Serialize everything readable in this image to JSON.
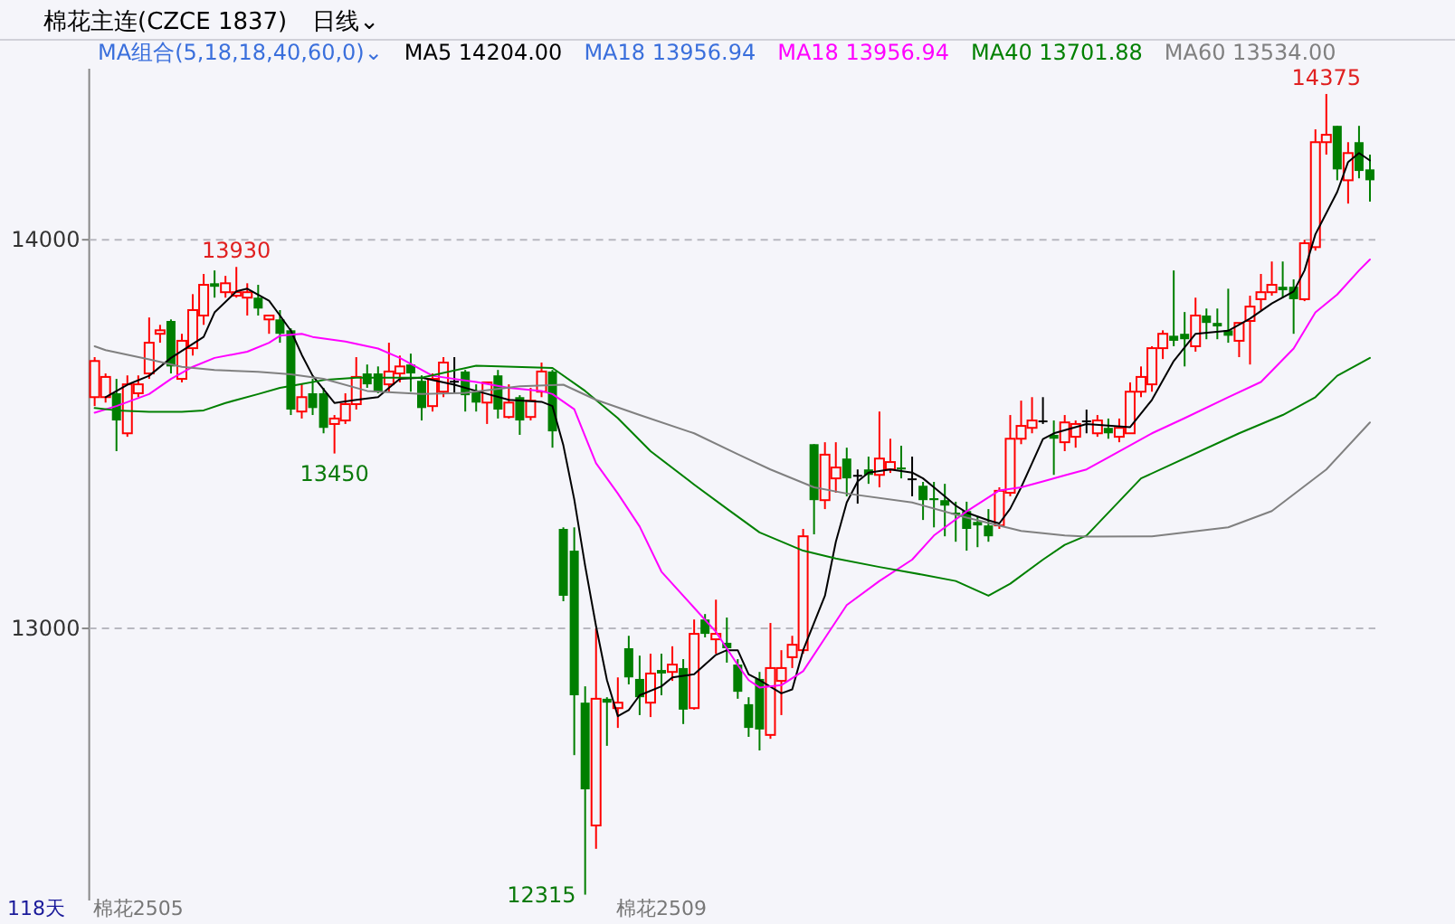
{
  "chart_data": {
    "type": "candlestick",
    "title": "棉花主连(CZCE 1837)",
    "subtitle": "日线⌄",
    "categories": [
      null,
      null,
      null,
      null,
      "棉花2505",
      null,
      null,
      null,
      null,
      null,
      null,
      null,
      null,
      null,
      null,
      null,
      null,
      null,
      null,
      null,
      null,
      null,
      null,
      null,
      null,
      null,
      null,
      null,
      null,
      null,
      null,
      null,
      null,
      null,
      null,
      null,
      null,
      null,
      null,
      null,
      null,
      null,
      null,
      null,
      null,
      null,
      null,
      null,
      null,
      null,
      null,
      null,
      "棉花2509",
      null,
      null,
      null,
      null,
      null,
      null,
      null,
      null,
      null,
      null,
      null,
      null,
      null,
      null,
      null,
      null,
      null,
      null,
      null,
      null,
      null,
      null,
      null,
      null,
      null,
      null,
      null,
      null,
      null,
      null,
      null,
      null,
      null,
      null,
      null,
      null,
      null,
      null,
      null,
      null,
      null,
      null,
      null,
      null,
      null,
      null,
      null,
      null,
      null,
      null,
      null,
      null,
      null,
      null,
      null,
      null,
      null,
      null,
      null,
      null,
      null,
      null,
      null,
      null,
      null
    ],
    "ohlc": [
      [
        13595,
        13698,
        13572,
        13688
      ],
      [
        13595,
        13656,
        13581,
        13647
      ],
      [
        13605,
        13642,
        13456,
        13535
      ],
      [
        13502,
        13651,
        13493,
        13628
      ],
      [
        13605,
        13651,
        13595,
        13628
      ],
      [
        13656,
        13800,
        13642,
        13735
      ],
      [
        13758,
        13781,
        13735,
        13767
      ],
      [
        13791,
        13795,
        13656,
        13674
      ],
      [
        13642,
        13758,
        13633,
        13740
      ],
      [
        13721,
        13860,
        13702,
        13819
      ],
      [
        13805,
        13912,
        13781,
        13884
      ],
      [
        13888,
        13921,
        13851,
        13879
      ],
      [
        13865,
        13907,
        13851,
        13888
      ],
      [
        13856,
        13930,
        13851,
        13865
      ],
      [
        13851,
        13888,
        13805,
        13865
      ],
      [
        13851,
        13884,
        13805,
        13823
      ],
      [
        13795,
        13805,
        13758,
        13805
      ],
      [
        13795,
        13819,
        13735,
        13758
      ],
      [
        13767,
        13772,
        13549,
        13563
      ],
      [
        13558,
        13628,
        13540,
        13595
      ],
      [
        13605,
        13642,
        13549,
        13567
      ],
      [
        13605,
        13619,
        13502,
        13516
      ],
      [
        13526,
        13549,
        13450,
        13540
      ],
      [
        13535,
        13605,
        13526,
        13577
      ],
      [
        13577,
        13698,
        13563,
        13647
      ],
      [
        13656,
        13679,
        13619,
        13628
      ],
      [
        13656,
        13674,
        13605,
        13609
      ],
      [
        13628,
        13735,
        13609,
        13661
      ],
      [
        13656,
        13702,
        13633,
        13674
      ],
      [
        13679,
        13707,
        13609,
        13656
      ],
      [
        13637,
        13651,
        13535,
        13567
      ],
      [
        13572,
        13656,
        13558,
        13642
      ],
      [
        13609,
        13698,
        13595,
        13684
      ],
      [
        13637,
        13698,
        13605,
        13637
      ],
      [
        13661,
        13665,
        13558,
        13600
      ],
      [
        13609,
        13628,
        13558,
        13581
      ],
      [
        13581,
        13633,
        13526,
        13633
      ],
      [
        13651,
        13665,
        13540,
        13563
      ],
      [
        13544,
        13628,
        13540,
        13581
      ],
      [
        13595,
        13600,
        13498,
        13535
      ],
      [
        13544,
        13619,
        13535,
        13586
      ],
      [
        13609,
        13684,
        13595,
        13661
      ],
      [
        13661,
        13665,
        13465,
        13507
      ],
      [
        13256,
        13260,
        13070,
        13084
      ],
      [
        13200,
        13260,
        12674,
        12828
      ],
      [
        12809,
        12851,
        12315,
        12586
      ],
      [
        12493,
        13000,
        12433,
        12819
      ],
      [
        12819,
        12823,
        12698,
        12809
      ],
      [
        12795,
        12874,
        12744,
        12809
      ],
      [
        12949,
        12981,
        12856,
        12874
      ],
      [
        12870,
        12930,
        12777,
        12823
      ],
      [
        12809,
        12935,
        12772,
        12884
      ],
      [
        12893,
        12935,
        12828,
        12884
      ],
      [
        12888,
        12954,
        12865,
        12907
      ],
      [
        12898,
        12921,
        12754,
        12791
      ],
      [
        12795,
        13023,
        12791,
        12986
      ],
      [
        13023,
        13037,
        12977,
        12986
      ],
      [
        12972,
        13074,
        12935,
        12986
      ],
      [
        12963,
        13028,
        12912,
        12949
      ],
      [
        12907,
        12921,
        12819,
        12837
      ],
      [
        12805,
        12823,
        12721,
        12744
      ],
      [
        12870,
        12888,
        12686,
        12740
      ],
      [
        12726,
        13014,
        12716,
        12898
      ],
      [
        12865,
        12944,
        12777,
        12898
      ],
      [
        12926,
        12981,
        12898,
        12958
      ],
      [
        12944,
        13256,
        12935,
        13237
      ],
      [
        13474,
        13474,
        13242,
        13330
      ],
      [
        13330,
        13479,
        13307,
        13447
      ],
      [
        13386,
        13479,
        13349,
        13414
      ],
      [
        13437,
        13465,
        13340,
        13386
      ],
      [
        13395,
        13409,
        13321,
        13395
      ],
      [
        13409,
        13442,
        13372,
        13395
      ],
      [
        13395,
        13558,
        13363,
        13437
      ],
      [
        13409,
        13488,
        13400,
        13428
      ],
      [
        13414,
        13470,
        13386,
        13409
      ],
      [
        13386,
        13442,
        13340,
        13386
      ],
      [
        13367,
        13377,
        13279,
        13330
      ],
      [
        13335,
        13377,
        13260,
        13330
      ],
      [
        13330,
        13372,
        13237,
        13316
      ],
      [
        13298,
        13326,
        13223,
        13293
      ],
      [
        13302,
        13326,
        13200,
        13256
      ],
      [
        13274,
        13288,
        13209,
        13265
      ],
      [
        13265,
        13307,
        13223,
        13237
      ],
      [
        13265,
        13363,
        13256,
        13354
      ],
      [
        13349,
        13549,
        13340,
        13488
      ],
      [
        13488,
        13586,
        13474,
        13521
      ],
      [
        13516,
        13595,
        13502,
        13535
      ],
      [
        13535,
        13595,
        13526,
        13535
      ],
      [
        13498,
        13535,
        13395,
        13488
      ],
      [
        13479,
        13549,
        13456,
        13530
      ],
      [
        13493,
        13535,
        13465,
        13526
      ],
      [
        13535,
        13563,
        13502,
        13535
      ],
      [
        13502,
        13549,
        13493,
        13535
      ],
      [
        13516,
        13540,
        13488,
        13502
      ],
      [
        13493,
        13540,
        13479,
        13516
      ],
      [
        13502,
        13633,
        13502,
        13609
      ],
      [
        13609,
        13674,
        13595,
        13647
      ],
      [
        13628,
        13726,
        13609,
        13721
      ],
      [
        13721,
        13767,
        13693,
        13758
      ],
      [
        13753,
        13921,
        13726,
        13740
      ],
      [
        13758,
        13814,
        13674,
        13744
      ],
      [
        13726,
        13851,
        13712,
        13805
      ],
      [
        13805,
        13823,
        13744,
        13786
      ],
      [
        13786,
        13823,
        13744,
        13777
      ],
      [
        13767,
        13874,
        13735,
        13753
      ],
      [
        13740,
        13786,
        13698,
        13786
      ],
      [
        13791,
        13856,
        13679,
        13828
      ],
      [
        13847,
        13912,
        13819,
        13865
      ],
      [
        13865,
        13944,
        13856,
        13884
      ],
      [
        13879,
        13944,
        13851,
        13870
      ],
      [
        13879,
        13898,
        13758,
        13847
      ],
      [
        13847,
        14000,
        13842,
        13991
      ],
      [
        13981,
        14284,
        13972,
        14251
      ],
      [
        14251,
        14375,
        14219,
        14270
      ],
      [
        14293,
        14293,
        14153,
        14181
      ],
      [
        14153,
        14251,
        14093,
        14223
      ],
      [
        14251,
        14293,
        14158,
        14177
      ],
      [
        14181,
        14219,
        14098,
        14153
      ]
    ],
    "series": [
      {
        "name": "MA5 14204.00",
        "type": "line",
        "color": "#000000",
        "values": [
          null,
          13595,
          null,
          13627,
          null,
          13650,
          null,
          13696,
          null,
          null,
          13750,
          13813,
          null,
          13867,
          13874,
          null,
          13843,
          13805,
          13766,
          13704,
          13650,
          null,
          13580,
          null,
          13588,
          null,
          13595,
          13619,
          13642,
          null,
          13645,
          null,
          null,
          13627,
          null,
          13611,
          null,
          null,
          13588,
          null,
          null,
          13583,
          13572,
          13471,
          13332,
          13161,
          13006,
          12867,
          12774,
          12790,
          12828,
          null,
          12851,
          12874,
          null,
          12882,
          null,
          12932,
          12944,
          12944,
          12882,
          12867,
          null,
          12833,
          12843,
          12944,
          null,
          13084,
          13223,
          13324,
          13378,
          13401,
          null,
          13409,
          null,
          13401,
          13386,
          13363,
          13340,
          13316,
          13298,
          null,
          13278,
          13270,
          13308,
          13363,
          13425,
          13487,
          13502,
          null,
          null,
          13526,
          null,
          null,
          null,
          13518,
          null,
          13588,
          null,
          13688,
          null,
          13758,
          null,
          null,
          13766,
          null,
          13797,
          null,
          13836,
          null,
          13867,
          13921,
          14014,
          null,
          14123,
          14200,
          14223,
          14204
        ]
      },
      {
        "name": "MA18 13956.94",
        "type": "line",
        "color": "#ff00ff",
        "values": [
          13555,
          null,
          13572,
          null,
          null,
          13603,
          null,
          13642,
          null,
          13673,
          null,
          13696,
          null,
          null,
          13712,
          null,
          13735,
          13753,
          null,
          13758,
          13750,
          null,
          null,
          13738,
          null,
          null,
          13720,
          null,
          13696,
          null,
          null,
          13650,
          null,
          null,
          null,
          13634,
          null,
          null,
          13619,
          null,
          null,
          13611,
          13603,
          null,
          13564,
          13494,
          13425,
          null,
          13347,
          null,
          13262,
          null,
          13146,
          null,
          null,
          13053,
          null,
          12991,
          null,
          12906,
          12867,
          12848,
          null,
          12854,
          null,
          12890,
          null,
          12975,
          null,
          13060,
          null,
          null,
          13122,
          null,
          null,
          13177,
          null,
          13239,
          null,
          null,
          13301,
          null,
          null,
          13355,
          null,
          13363,
          null,
          13378,
          null,
          13394,
          null,
          13409,
          null,
          null,
          null,
          null,
          null,
          13502,
          null,
          null,
          13541,
          null,
          null,
          null,
          13595,
          null,
          null,
          13634,
          null,
          null,
          13720,
          null,
          13813,
          null,
          13859,
          null,
          13921,
          13949
        ]
      },
      {
        "name": "MA40 13701.88",
        "type": "line",
        "color": "#008000",
        "values": [
          13567,
          null,
          13561,
          null,
          null,
          13557,
          null,
          null,
          13557,
          null,
          13561,
          null,
          13580,
          null,
          null,
          13603,
          null,
          13619,
          null,
          13629,
          null,
          13639,
          null,
          null,
          13645,
          null,
          null,
          null,
          null,
          null,
          13645,
          null,
          null,
          null,
          null,
          13676,
          null,
          null,
          null,
          null,
          null,
          null,
          13670,
          null,
          null,
          13611,
          null,
          null,
          13541,
          null,
          null,
          13456,
          null,
          null,
          null,
          13370,
          null,
          null,
          13308,
          null,
          null,
          13247,
          null,
          null,
          null,
          13200,
          null,
          null,
          13180,
          null,
          null,
          null,
          13158,
          null,
          null,
          null,
          13138,
          null,
          null,
          13122,
          null,
          null,
          13084,
          null,
          13115,
          null,
          null,
          13177,
          null,
          13215,
          null,
          13239,
          null,
          null,
          null,
          null,
          13386,
          null,
          null,
          null,
          null,
          null,
          null,
          null,
          null,
          13502,
          null,
          null,
          null,
          13549,
          null,
          null,
          13595,
          null,
          13650,
          null,
          null,
          13696
        ]
      },
      {
        "name": "MA60 13534.00",
        "type": "line",
        "color": "#808080",
        "values": [
          13726,
          13716,
          null,
          null,
          null,
          13692,
          null,
          null,
          13673,
          null,
          null,
          13665,
          null,
          null,
          null,
          13660,
          null,
          null,
          13654,
          null,
          null,
          13642,
          null,
          null,
          null,
          13611,
          null,
          null,
          null,
          null,
          13603,
          null,
          null,
          null,
          13606,
          null,
          null,
          null,
          null,
          13623,
          null,
          null,
          null,
          13627,
          null,
          null,
          13588,
          null,
          null,
          null,
          13549,
          null,
          null,
          null,
          null,
          13502,
          null,
          null,
          null,
          13448,
          null,
          null,
          13409,
          null,
          null,
          null,
          13363,
          null,
          null,
          13347,
          null,
          null,
          null,
          null,
          null,
          13324,
          null,
          null,
          null,
          null,
          13285,
          null,
          null,
          null,
          null,
          13251,
          null,
          null,
          null,
          13239,
          null,
          13236,
          null,
          null,
          null,
          null,
          null,
          13237,
          null,
          null,
          null,
          null,
          null,
          null,
          13260,
          null,
          null,
          null,
          13302,
          null,
          null,
          null,
          null,
          13409,
          null,
          null,
          null,
          13530
        ]
      }
    ],
    "ylim": [
      12300,
      14440
    ],
    "yticks": [
      13000,
      14000
    ],
    "grid": "y",
    "legend": "top",
    "annotations": [
      "MA组合(5,18,18,40,60,0)⌄",
      "MA18 13956.94",
      "118天",
      {
        "text": "13930",
        "y": 13930
      },
      {
        "text": "13450",
        "y": 13450
      },
      "12315",
      {
        "text": "14375",
        "y": 14375
      }
    ]
  }
}
